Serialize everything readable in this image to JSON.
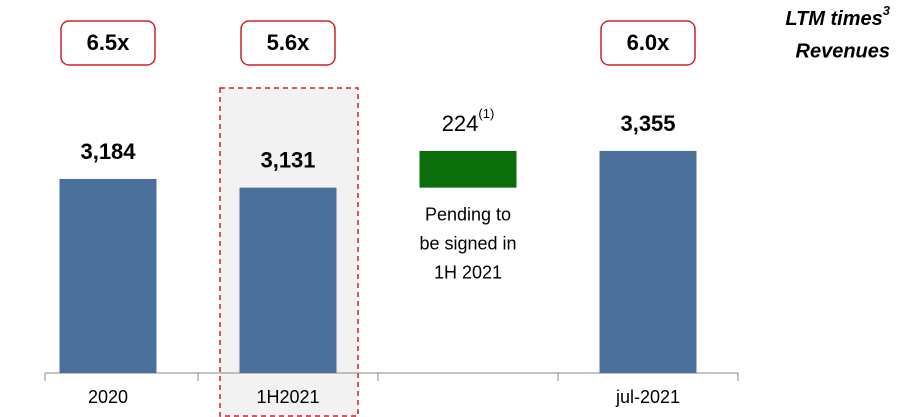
{
  "chart_data": {
    "type": "waterfall",
    "categories": [
      "2020",
      "1H2021",
      null,
      "jul-2021"
    ],
    "values": [
      3184,
      3131,
      224,
      3355
    ],
    "value_labels": [
      "3,184",
      "3,131",
      "224",
      "3,355"
    ],
    "value_label_notes": [
      null,
      null,
      "(1)",
      null
    ],
    "totals": [
      true,
      true,
      false,
      true
    ],
    "colors": [
      "#4a6f9a",
      "#4a6f9a",
      "#0b6e0b",
      "#4a6f9a"
    ],
    "multiples": [
      "6.5x",
      "5.6x",
      null,
      "6.0x"
    ],
    "multiples_header": {
      "line1": "LTM times",
      "superscript": "3",
      "line2": "Revenues"
    },
    "note": [
      "Pending to",
      "be signed in",
      "1H 2021"
    ],
    "ylim": [
      2000,
      3800
    ]
  }
}
